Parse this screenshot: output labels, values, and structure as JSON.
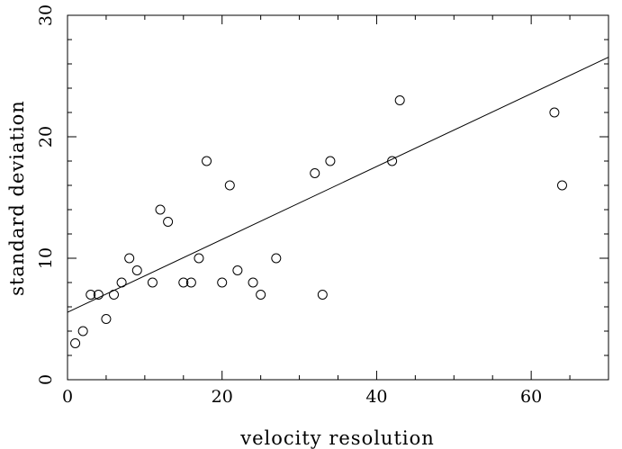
{
  "chart_data": {
    "type": "scatter",
    "title": "",
    "xlabel": "velocity resolution",
    "ylabel": "standard deviation",
    "xlim": [
      0,
      70
    ],
    "ylim": [
      0,
      30
    ],
    "x_ticks": [
      0,
      20,
      40,
      60
    ],
    "y_ticks": [
      0,
      10,
      20,
      30
    ],
    "grid": false,
    "points": [
      {
        "x": 1,
        "y": 3
      },
      {
        "x": 2,
        "y": 4
      },
      {
        "x": 3,
        "y": 7
      },
      {
        "x": 4,
        "y": 7
      },
      {
        "x": 5,
        "y": 5
      },
      {
        "x": 6,
        "y": 7
      },
      {
        "x": 7,
        "y": 8
      },
      {
        "x": 8,
        "y": 10
      },
      {
        "x": 9,
        "y": 9
      },
      {
        "x": 11,
        "y": 8
      },
      {
        "x": 12,
        "y": 14
      },
      {
        "x": 13,
        "y": 13
      },
      {
        "x": 15,
        "y": 8
      },
      {
        "x": 16,
        "y": 8
      },
      {
        "x": 17,
        "y": 10
      },
      {
        "x": 18,
        "y": 18
      },
      {
        "x": 20,
        "y": 8
      },
      {
        "x": 21,
        "y": 16
      },
      {
        "x": 22,
        "y": 9
      },
      {
        "x": 24,
        "y": 8
      },
      {
        "x": 25,
        "y": 7
      },
      {
        "x": 27,
        "y": 10
      },
      {
        "x": 32,
        "y": 17
      },
      {
        "x": 33,
        "y": 7
      },
      {
        "x": 34,
        "y": 18
      },
      {
        "x": 42,
        "y": 18
      },
      {
        "x": 43,
        "y": 23
      },
      {
        "x": 63,
        "y": 22
      },
      {
        "x": 64,
        "y": 16
      }
    ],
    "fit_line": {
      "x": [
        0,
        70
      ],
      "y": [
        5.55,
        26.55
      ]
    }
  }
}
